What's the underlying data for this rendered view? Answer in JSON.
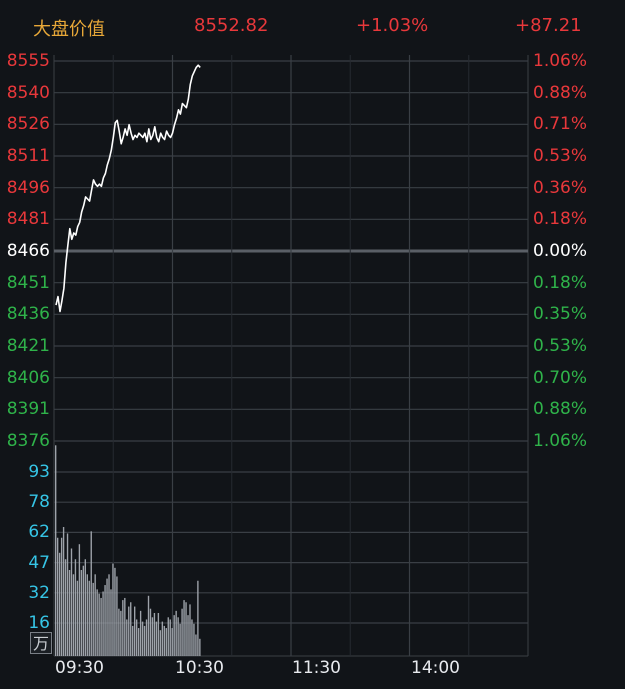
{
  "header": {
    "title": "大盘价值",
    "price": "8552.82",
    "change_pct": "+1.03%",
    "change": "+87.21"
  },
  "colors": {
    "background": "#111418",
    "grid": "#3a3f45",
    "up": "#e8383b",
    "down": "#2fb34a",
    "neutral": "#ffffff",
    "title": "#e8a838",
    "volume_axis": "#36c5e6",
    "volume_bar": "#9ea3aa"
  },
  "unit_label": "万",
  "chart_data": {
    "type": "line",
    "price_axis": {
      "labels": [
        "8555",
        "8540",
        "8526",
        "8511",
        "8496",
        "8481",
        "8466",
        "8451",
        "8436",
        "8421",
        "8406",
        "8391",
        "8376"
      ],
      "pct_labels": [
        "1.06%",
        "0.88%",
        "0.71%",
        "0.53%",
        "0.36%",
        "0.18%",
        "0.00%",
        "0.18%",
        "0.35%",
        "0.53%",
        "0.70%",
        "0.88%",
        "1.06%"
      ],
      "ylim": [
        8376,
        8555
      ],
      "base": 8466
    },
    "x_labels": [
      "09:30",
      "10:30",
      "11:30",
      "14:00"
    ],
    "x_range_minutes": [
      0,
      240
    ],
    "price_series": [
      [
        0,
        8440
      ],
      [
        1,
        8444
      ],
      [
        2,
        8437
      ],
      [
        3,
        8442
      ],
      [
        4,
        8448
      ],
      [
        5,
        8460
      ],
      [
        6,
        8468
      ],
      [
        7,
        8476
      ],
      [
        8,
        8471
      ],
      [
        9,
        8474
      ],
      [
        10,
        8473
      ],
      [
        11,
        8477
      ],
      [
        12,
        8479
      ],
      [
        13,
        8484
      ],
      [
        14,
        8487
      ],
      [
        15,
        8491
      ],
      [
        16,
        8490
      ],
      [
        17,
        8489
      ],
      [
        18,
        8494
      ],
      [
        19,
        8499
      ],
      [
        20,
        8497
      ],
      [
        21,
        8496
      ],
      [
        22,
        8497
      ],
      [
        23,
        8496
      ],
      [
        24,
        8500
      ],
      [
        25,
        8502
      ],
      [
        26,
        8506
      ],
      [
        27,
        8509
      ],
      [
        28,
        8513
      ],
      [
        29,
        8519
      ],
      [
        30,
        8526
      ],
      [
        31,
        8527
      ],
      [
        32,
        8522
      ],
      [
        33,
        8516
      ],
      [
        34,
        8519
      ],
      [
        35,
        8523
      ],
      [
        36,
        8520
      ],
      [
        37,
        8525
      ],
      [
        38,
        8521
      ],
      [
        39,
        8518
      ],
      [
        40,
        8520
      ],
      [
        41,
        8519
      ],
      [
        42,
        8521
      ],
      [
        43,
        8520
      ],
      [
        44,
        8519
      ],
      [
        45,
        8521
      ],
      [
        46,
        8517
      ],
      [
        47,
        8523
      ],
      [
        48,
        8518
      ],
      [
        49,
        8520
      ],
      [
        50,
        8524
      ],
      [
        51,
        8519
      ],
      [
        52,
        8517
      ],
      [
        53,
        8521
      ],
      [
        54,
        8519
      ],
      [
        55,
        8518
      ],
      [
        56,
        8522
      ],
      [
        57,
        8520
      ],
      [
        58,
        8519
      ],
      [
        59,
        8521
      ],
      [
        60,
        8525
      ],
      [
        61,
        8528
      ],
      [
        62,
        8532
      ],
      [
        63,
        8530
      ],
      [
        64,
        8535
      ],
      [
        65,
        8534
      ],
      [
        66,
        8533
      ],
      [
        67,
        8537
      ],
      [
        68,
        8544
      ],
      [
        69,
        8548
      ],
      [
        70,
        8550
      ],
      [
        71,
        8552
      ],
      [
        72,
        8553
      ],
      [
        73,
        8552
      ]
    ],
    "volume_axis": {
      "labels": [
        "93",
        "78",
        "62",
        "47",
        "32",
        "16"
      ],
      "ylim": [
        0,
        100
      ],
      "unit": "万"
    },
    "volume_series": [
      98,
      55,
      48,
      55,
      60,
      45,
      57,
      40,
      50,
      38,
      45,
      35,
      52,
      40,
      42,
      45,
      38,
      35,
      58,
      34,
      38,
      31,
      29,
      27,
      30,
      33,
      36,
      38,
      31,
      43,
      41,
      37,
      22,
      21,
      26,
      27,
      17,
      23,
      25,
      14,
      23,
      17,
      13,
      21,
      16,
      14,
      17,
      28,
      22,
      18,
      20,
      16,
      20,
      12,
      16,
      14,
      13,
      18,
      17,
      13,
      19,
      21,
      18,
      15,
      22,
      26,
      25,
      19,
      24,
      17,
      15,
      10,
      35,
      8
    ]
  }
}
